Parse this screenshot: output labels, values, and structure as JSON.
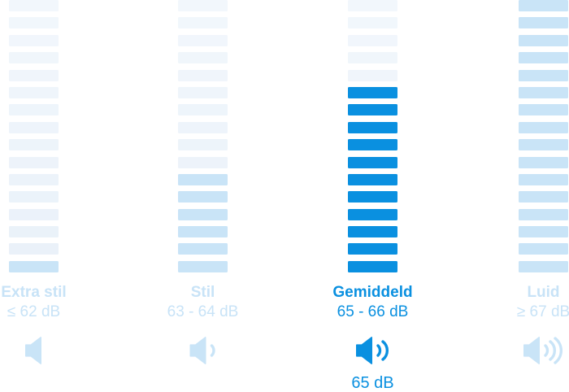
{
  "chart": {
    "total_bars": 16,
    "colors": {
      "selected": "#0a90e0",
      "filled": "#c9e4f7",
      "empty_top": "#f2f7fc",
      "empty_bottom": "#e9f1f9",
      "muted_text": "#c8e3f7"
    },
    "selected_value": "65 dB",
    "columns": [
      {
        "id": "extra-stil",
        "name": "Extra stil",
        "range": "≤ 62 dB",
        "filled_bars": 1,
        "waves": 0,
        "selected": false
      },
      {
        "id": "stil",
        "name": "Stil",
        "range": "63 - 64 dB",
        "filled_bars": 6,
        "waves": 1,
        "selected": false
      },
      {
        "id": "gemiddeld",
        "name": "Gemiddeld",
        "range": "65 - 66 dB",
        "filled_bars": 11,
        "waves": 2,
        "selected": true
      },
      {
        "id": "luid",
        "name": "Luid",
        "range": "≥ 67 dB",
        "filled_bars": 16,
        "waves": 3,
        "selected": false
      }
    ]
  },
  "chart_data": {
    "type": "bar",
    "orientation": "vertical-segmented",
    "categories": [
      "Extra stil",
      "Stil",
      "Gemiddeld",
      "Luid"
    ],
    "category_sublabels": [
      "≤ 62 dB",
      "63 - 64 dB",
      "65 - 66 dB",
      "≥ 67 dB"
    ],
    "values": [
      1,
      6,
      11,
      16
    ],
    "value_scale": "filled segments out of 16",
    "highlighted_category": "Gemiddeld",
    "annotations": [
      "65 dB"
    ],
    "legend": false,
    "grid": false
  }
}
